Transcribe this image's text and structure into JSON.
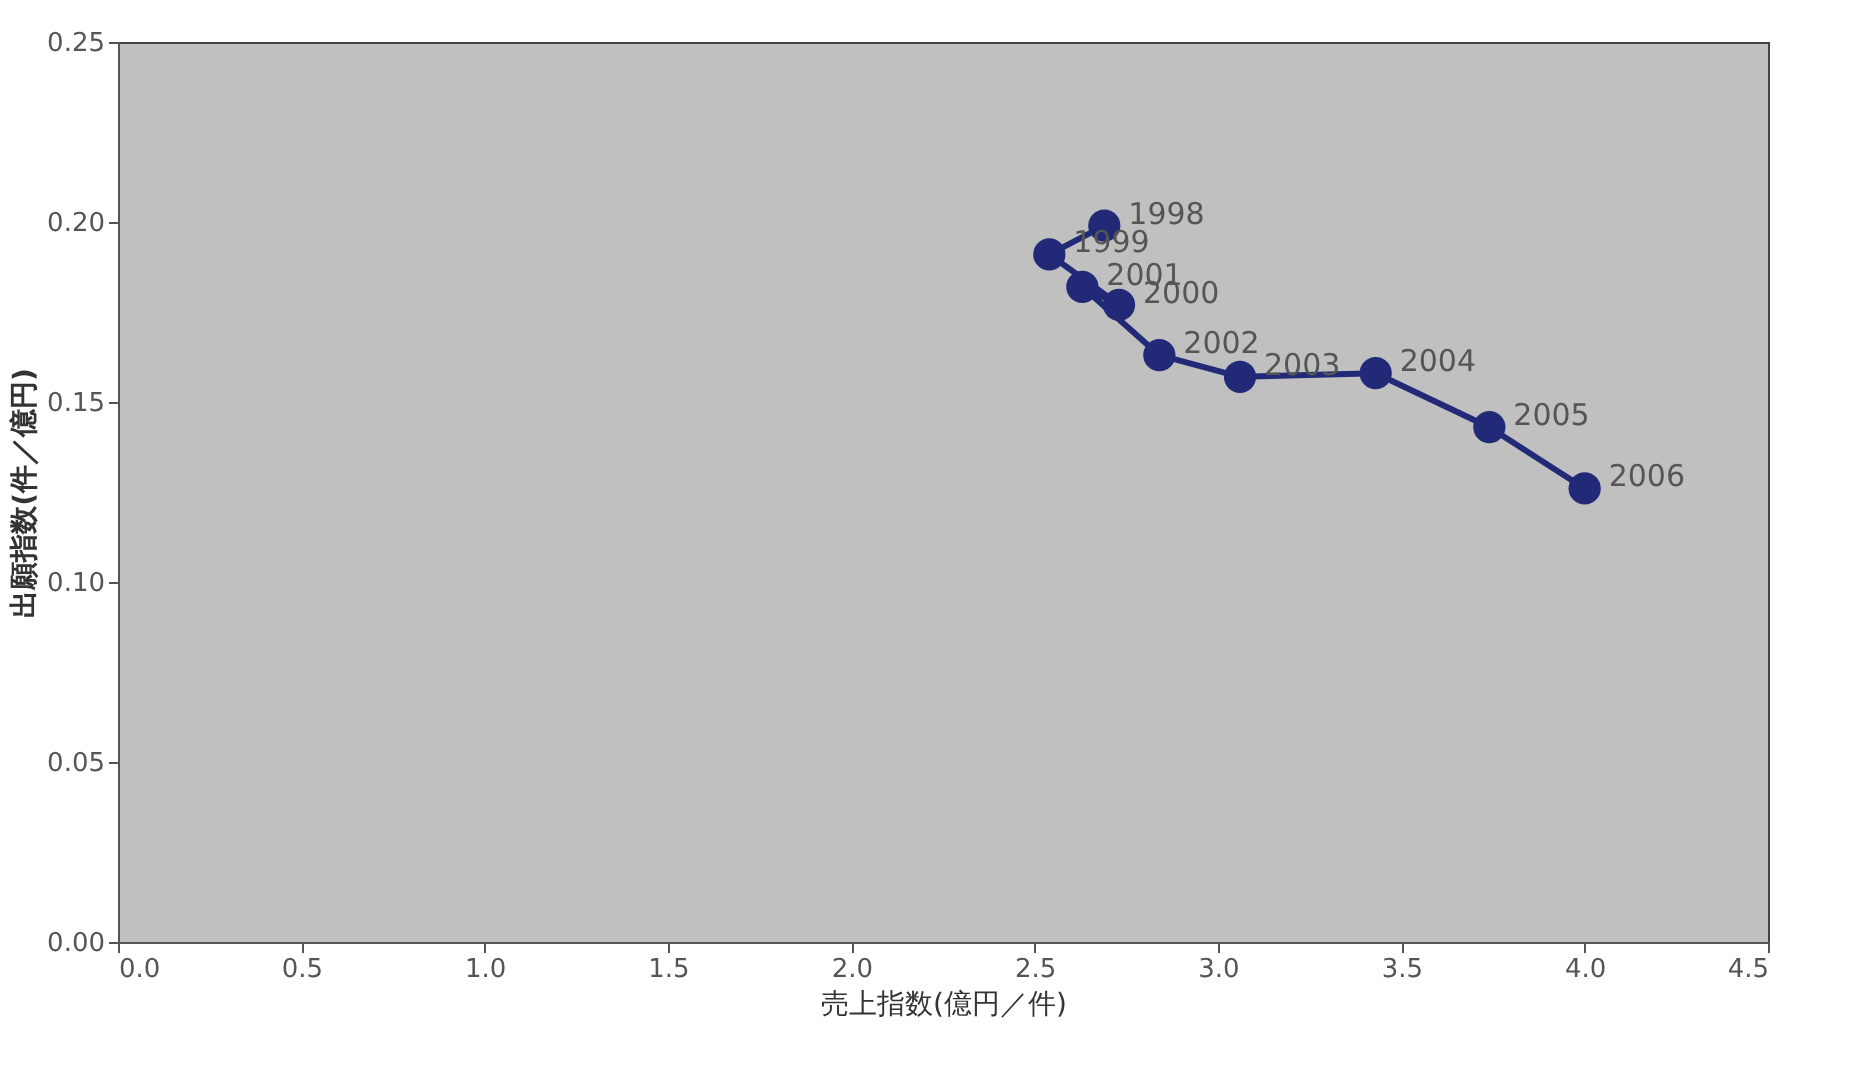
{
  "chart_data": {
    "type": "line",
    "xlabel": "売上指数(億円／件)",
    "ylabel": "出願指数(件／億円)",
    "xlim": [
      0,
      4.5
    ],
    "xticks": [
      {
        "value": 0,
        "label": "0.0"
      },
      0.5,
      {
        "value": 1,
        "label": "1.0"
      },
      1.5,
      {
        "value": 2,
        "label": "2.0"
      },
      2.5,
      {
        "value": 3,
        "label": "3.0"
      },
      3.5,
      {
        "value": 4,
        "label": "4.0"
      },
      4.5
    ],
    "ylim": [
      0,
      0.25
    ],
    "yticks": [
      {
        "value": 0,
        "label": "0.00"
      },
      0.05,
      {
        "value": 0.1,
        "label": "0.10"
      },
      0.15,
      {
        "value": 0.2,
        "label": "0.20"
      },
      0.25
    ],
    "grid": false,
    "marker": "circle",
    "line_style": "solid",
    "series": [
      {
        "color": "#222a78",
        "x": [
          2.69,
          2.54,
          2.73,
          2.63,
          2.84,
          3.06,
          3.43,
          3.74,
          4.0
        ],
        "values": [
          0.199,
          0.191,
          0.177,
          0.182,
          0.163,
          0.157,
          0.158,
          0.143,
          0.126
        ]
      }
    ],
    "annotations": [
      {
        "text": "1998",
        "x": 2.69,
        "y": 0.199
      },
      {
        "text": "1999",
        "x": 2.54,
        "y": 0.191
      },
      {
        "text": "2000",
        "x": 2.73,
        "y": 0.177
      },
      {
        "text": "2001",
        "x": 2.63,
        "y": 0.182
      },
      {
        "text": "2002",
        "x": 2.84,
        "y": 0.163
      },
      {
        "text": "2003",
        "x": 3.06,
        "y": 0.157
      },
      {
        "text": "2004",
        "x": 3.43,
        "y": 0.158
      },
      {
        "text": "2005",
        "x": 3.74,
        "y": 0.143
      },
      {
        "text": "2006",
        "x": 4.0,
        "y": 0.126
      }
    ]
  }
}
